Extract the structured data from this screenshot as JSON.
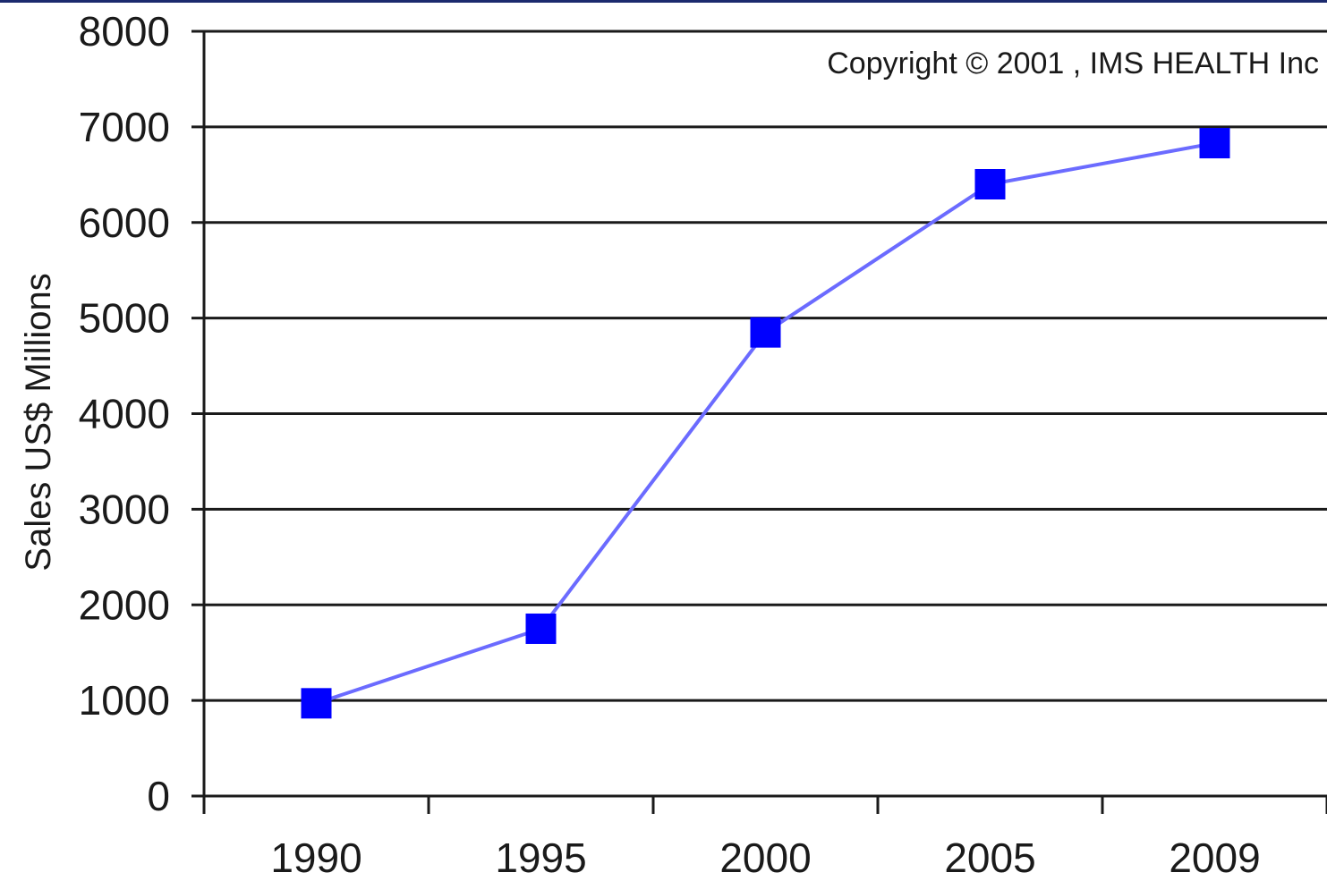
{
  "chart_data": {
    "type": "line",
    "title": "",
    "xlabel": "",
    "ylabel": "Sales US$ Millions",
    "annotation": "Copyright © 2001 , IMS HEALTH Inc",
    "categories": [
      "1990",
      "1995",
      "2000",
      "2005",
      "2009"
    ],
    "series": [
      {
        "values": [
          970,
          1750,
          4850,
          6400,
          6830
        ]
      }
    ],
    "ylim": [
      0,
      8000
    ],
    "yticks": [
      "0",
      "1000",
      "2000",
      "3000",
      "4000",
      "5000",
      "6000",
      "7000",
      "8000"
    ],
    "grid": true,
    "legend": "none",
    "colors": {
      "line": "#6b6bff",
      "marker": "#0000ff",
      "grid": "#1a1a1a",
      "axis": "#1a1a1a",
      "frame_top": "#1c2a6e"
    }
  }
}
